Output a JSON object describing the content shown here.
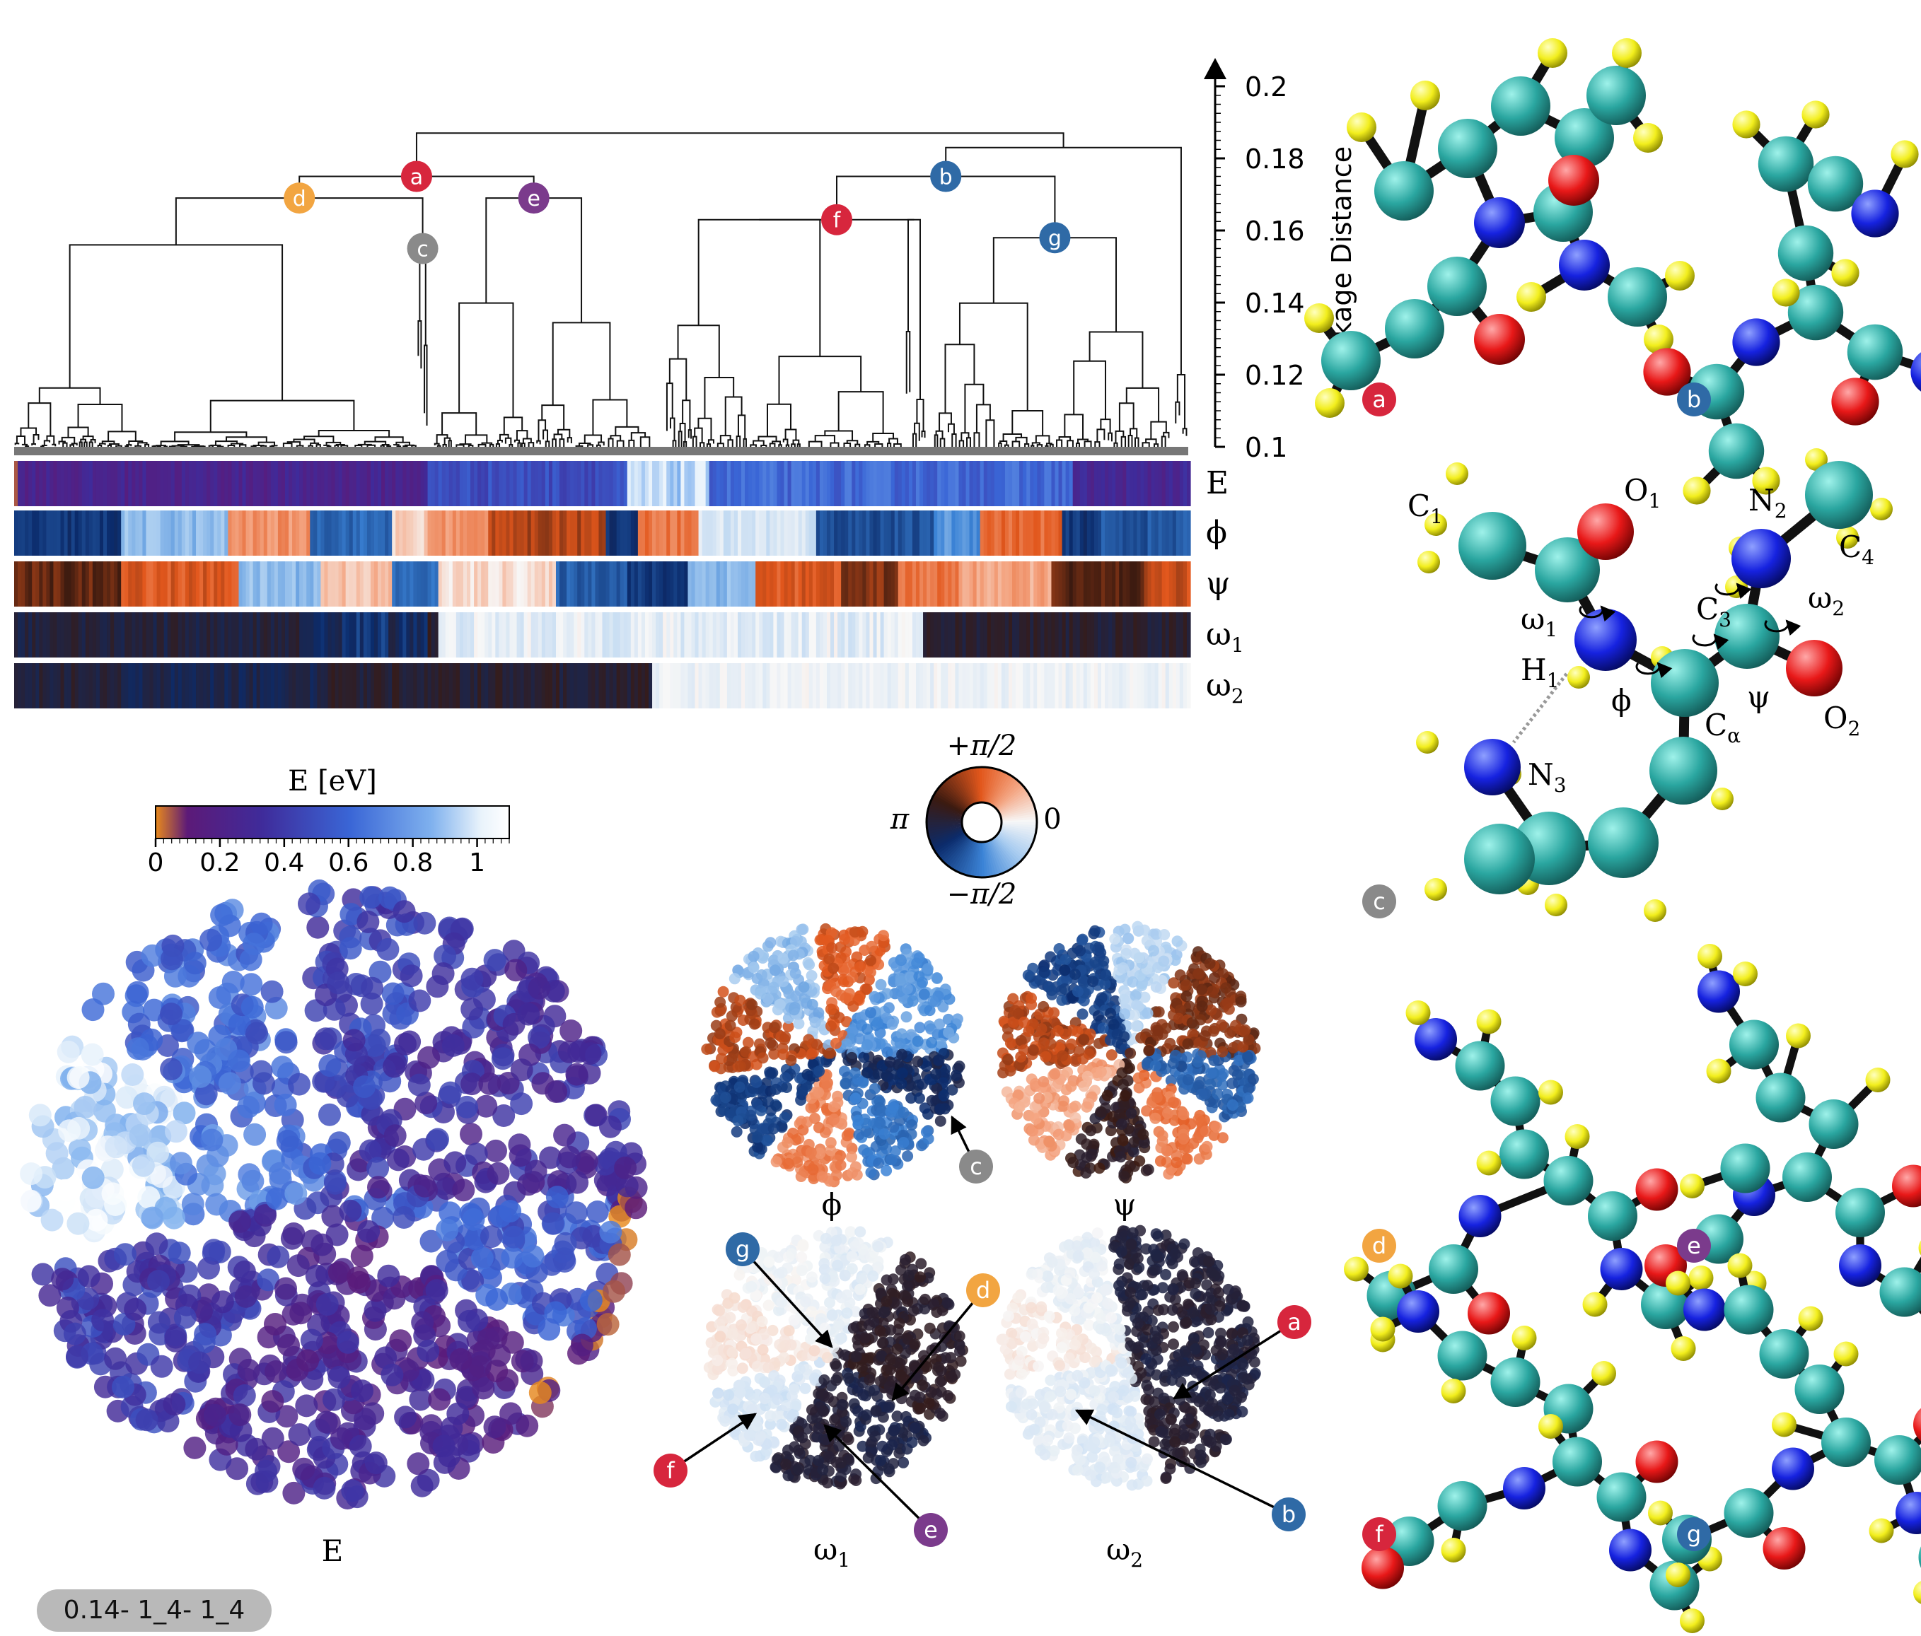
{
  "figure": {
    "badge": "0.14- 1_4- 1_4",
    "dendrogram": {
      "axis_label": "Linkage Distance",
      "ticks": [
        "0.2",
        "0.18",
        "0.16",
        "0.14",
        "0.12",
        "0.1"
      ],
      "ylim": [
        0.1,
        0.2
      ],
      "cluster_nodes": [
        {
          "id": "a",
          "color": "#d7263d",
          "distance": 0.175
        },
        {
          "id": "b",
          "color": "#2f6aa6",
          "distance": 0.175
        },
        {
          "id": "c",
          "color": "#8a8a8a",
          "distance": 0.155
        },
        {
          "id": "d",
          "color": "#f2a541",
          "distance": 0.169
        },
        {
          "id": "e",
          "color": "#7b3b8c",
          "distance": 0.169
        },
        {
          "id": "f",
          "color": "#d7263d",
          "distance": 0.163
        },
        {
          "id": "g",
          "color": "#2f6aa6",
          "distance": 0.158
        }
      ]
    },
    "heat_strips": [
      {
        "label": "E",
        "italic": false
      },
      {
        "label": "ϕ",
        "italic": false
      },
      {
        "label": "ψ",
        "italic": false
      },
      {
        "label": "ω",
        "sub": "1"
      },
      {
        "label": "ω",
        "sub": "2"
      }
    ],
    "energy_colorbar": {
      "title": "E [eV]",
      "ticks": [
        "0",
        "0.2",
        "0.4",
        "0.6",
        "0.8",
        "1"
      ],
      "range": [
        0,
        1.1
      ],
      "colors": [
        "#e8891c",
        "#5c1a78",
        "#3f2b9a",
        "#3a66d6",
        "#7fb1ee",
        "#e9f3fb",
        "#ffffff"
      ]
    },
    "angle_wheel": {
      "top": "+π/2",
      "bottom": "−π/2",
      "left": "π",
      "right": "0",
      "colors": [
        "#f4a582",
        "#e2571c",
        "#3b1a10",
        "#0b2b6b",
        "#3b83d6",
        "#f7f7f7"
      ]
    },
    "scatter_panels": [
      {
        "id": "E",
        "label": "E",
        "sub": ""
      },
      {
        "id": "phi",
        "label": "ϕ",
        "sub": ""
      },
      {
        "id": "psi",
        "label": "ψ",
        "sub": ""
      },
      {
        "id": "w1",
        "label": "ω",
        "sub": "1"
      },
      {
        "id": "w2",
        "label": "ω",
        "sub": "2"
      }
    ],
    "scatter_callouts": [
      "c",
      "g",
      "d",
      "f",
      "e",
      "a",
      "b"
    ],
    "molecule_c_labels": {
      "C1": {
        "base": "C",
        "sub": "1"
      },
      "O1": {
        "base": "O",
        "sub": "1"
      },
      "N2": {
        "base": "N",
        "sub": "2"
      },
      "C4": {
        "base": "C",
        "sub": "4"
      },
      "C3": {
        "base": "C",
        "sub": "3"
      },
      "omega1": {
        "base": "ω",
        "sub": "1"
      },
      "omega2": {
        "base": "ω",
        "sub": "2"
      },
      "H1": {
        "base": "H",
        "sub": "1"
      },
      "phi": {
        "base": "ϕ",
        "sub": ""
      },
      "psi": {
        "base": "ψ",
        "sub": ""
      },
      "Calpha": {
        "base": "C",
        "sub": "α"
      },
      "O2": {
        "base": "O",
        "sub": "2"
      },
      "N3": {
        "base": "N",
        "sub": "3"
      }
    },
    "molecule_tags": [
      "a",
      "b",
      "c",
      "d",
      "e",
      "f",
      "g"
    ],
    "atom_colors": {
      "carbon": "#2aa6a0",
      "hydrogen": "#f2ee1c",
      "nitrogen": "#1622e0",
      "oxygen": "#e81818"
    }
  }
}
